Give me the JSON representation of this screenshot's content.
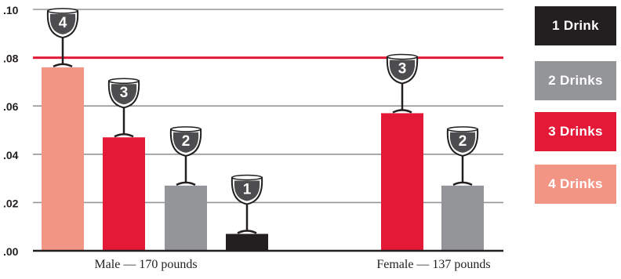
{
  "chart_data": {
    "type": "bar",
    "xlabel": "",
    "ylabel": "",
    "ylim": [
      0,
      0.1
    ],
    "yticks": [
      {
        "value": 0.0,
        "label": ".00"
      },
      {
        "value": 0.02,
        "label": ".02"
      },
      {
        "value": 0.04,
        "label": ".04"
      },
      {
        "value": 0.06,
        "label": ".06"
      },
      {
        "value": 0.08,
        "label": ".08"
      },
      {
        "value": 0.1,
        "label": ".10"
      }
    ],
    "grid": true,
    "reference_line": {
      "value": 0.08,
      "color": "#e31937"
    },
    "categories": [
      "Male — 170 pounds",
      "Female — 137 pounds"
    ],
    "series": [
      {
        "name": "4 Drinks",
        "glass_label": "4",
        "color": "#f29585",
        "values": [
          0.076,
          null
        ]
      },
      {
        "name": "3 Drinks",
        "glass_label": "3",
        "color": "#e31937",
        "values": [
          0.047,
          0.057
        ]
      },
      {
        "name": "2 Drinks",
        "glass_label": "2",
        "color": "#939598",
        "values": [
          0.027,
          0.027
        ]
      },
      {
        "name": "1 Drink",
        "glass_label": "1",
        "color": "#231f20",
        "values": [
          0.007,
          null
        ]
      }
    ],
    "legend": {
      "position": "right",
      "entries": [
        {
          "label": "1 Drink",
          "color": "#231f20"
        },
        {
          "label": "2 Drinks",
          "color": "#939598"
        },
        {
          "label": "3 Drinks",
          "color": "#e31937"
        },
        {
          "label": "4 Drinks",
          "color": "#f29585"
        }
      ]
    },
    "colors": {
      "grid": "#939598",
      "axis": "#231f20",
      "glass_fill": "#4d4d4f",
      "glass_text": "#ffffff"
    }
  }
}
